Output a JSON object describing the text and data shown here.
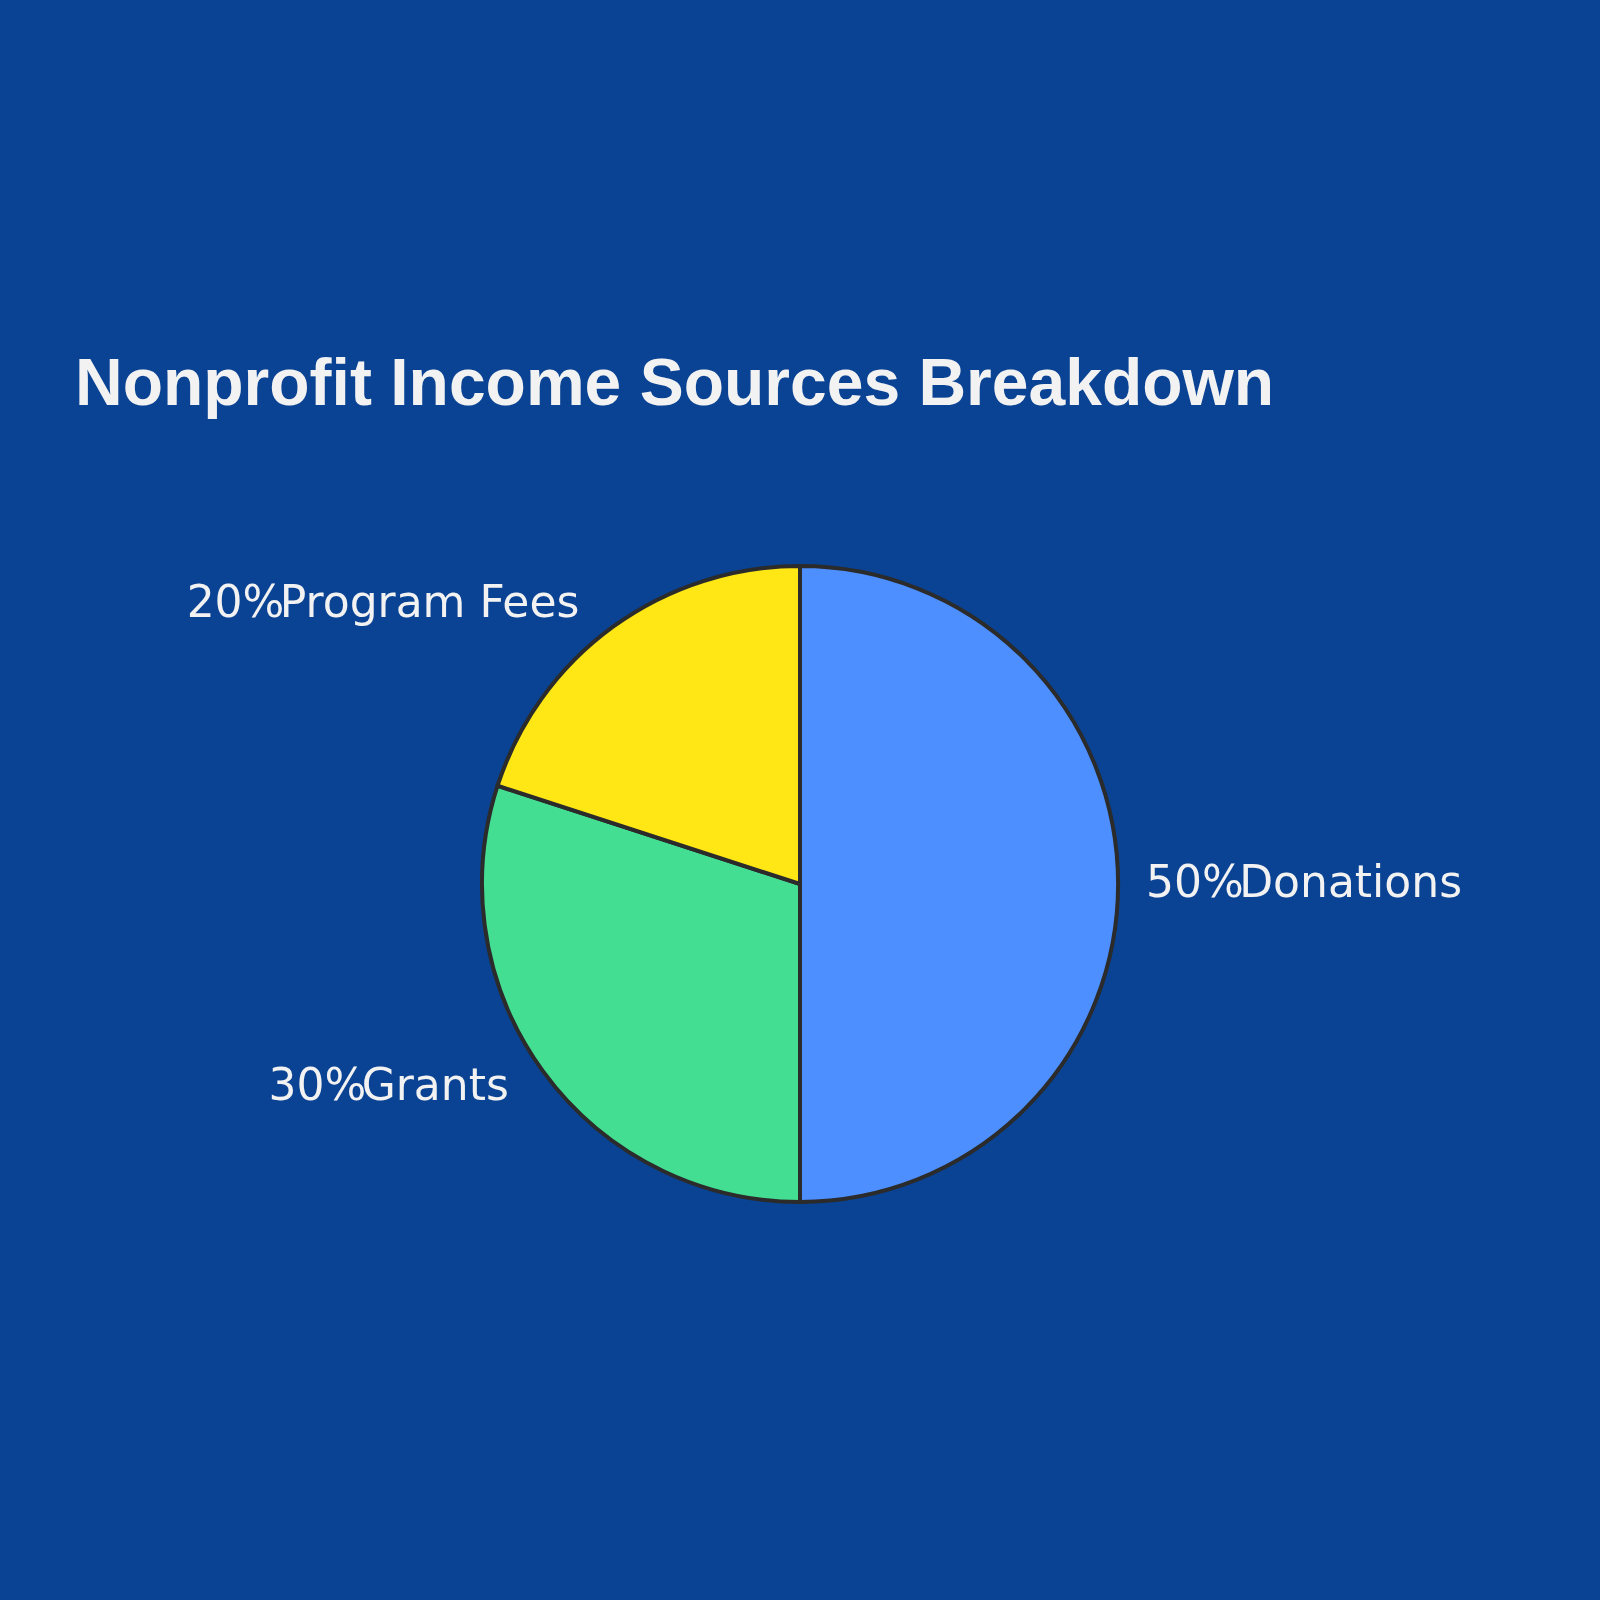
{
  "chart_data": {
    "type": "pie",
    "title": "Nonprofit Income Sources Breakdown",
    "categories": [
      "Donations",
      "Grants",
      "Program Fees"
    ],
    "values": [
      50,
      30,
      20
    ],
    "colors": [
      "#4d8ffe",
      "#44de93",
      "#ffe715"
    ],
    "value_labels": [
      "50%",
      "30%",
      "20%"
    ]
  }
}
